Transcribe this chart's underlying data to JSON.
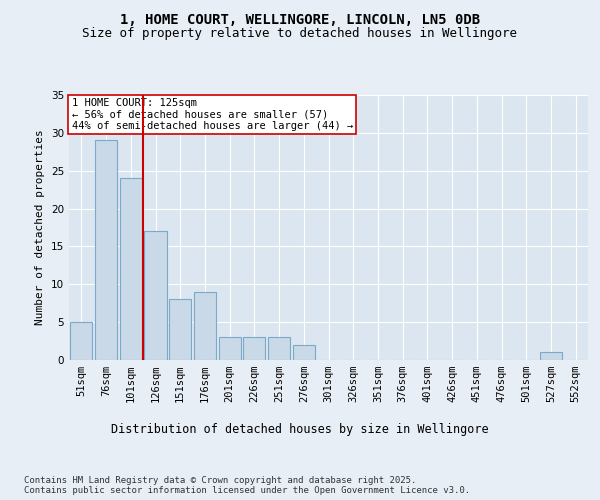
{
  "title1": "1, HOME COURT, WELLINGORE, LINCOLN, LN5 0DB",
  "title2": "Size of property relative to detached houses in Wellingore",
  "xlabel": "Distribution of detached houses by size in Wellingore",
  "ylabel": "Number of detached properties",
  "categories": [
    "51sqm",
    "76sqm",
    "101sqm",
    "126sqm",
    "151sqm",
    "176sqm",
    "201sqm",
    "226sqm",
    "251sqm",
    "276sqm",
    "301sqm",
    "326sqm",
    "351sqm",
    "376sqm",
    "401sqm",
    "426sqm",
    "451sqm",
    "476sqm",
    "501sqm",
    "527sqm",
    "552sqm"
  ],
  "values": [
    5,
    29,
    24,
    17,
    8,
    9,
    3,
    3,
    3,
    2,
    0,
    0,
    0,
    0,
    0,
    0,
    0,
    0,
    0,
    1,
    0
  ],
  "bar_color": "#c9d9e8",
  "bar_edge_color": "#7aaac8",
  "vline_color": "#cc0000",
  "annotation_text": "1 HOME COURT: 125sqm\n← 56% of detached houses are smaller (57)\n44% of semi-detached houses are larger (44) →",
  "annotation_box_color": "#ffffff",
  "annotation_box_edge": "#cc0000",
  "ylim": [
    0,
    35
  ],
  "yticks": [
    0,
    5,
    10,
    15,
    20,
    25,
    30,
    35
  ],
  "bg_color": "#e8eef5",
  "plot_bg_color": "#dce6f0",
  "footer": "Contains HM Land Registry data © Crown copyright and database right 2025.\nContains public sector information licensed under the Open Government Licence v3.0.",
  "title1_fontsize": 10,
  "title2_fontsize": 9,
  "xlabel_fontsize": 8.5,
  "ylabel_fontsize": 8,
  "tick_fontsize": 7.5,
  "annotation_fontsize": 7.5,
  "footer_fontsize": 6.5
}
